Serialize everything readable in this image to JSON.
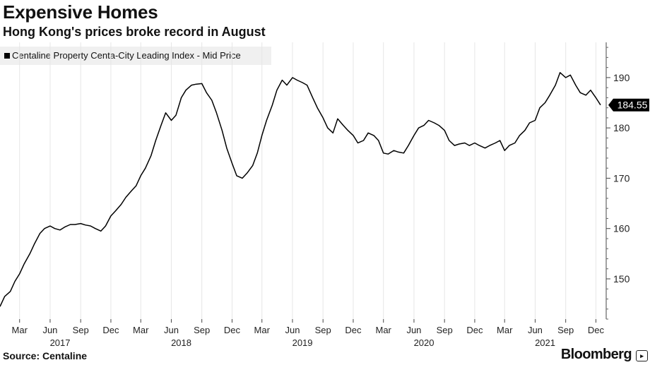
{
  "header": {
    "title": "Expensive Homes",
    "subtitle": "Hong Kong's prices broke record in August"
  },
  "legend": {
    "label": "Centaline Property Centa-City Leading Index - Mid Price"
  },
  "footer": {
    "source": "Source: Centaline",
    "brand": "Bloomberg"
  },
  "colors": {
    "line": "#000000",
    "grid": "#e6e6e6",
    "legend_bg": "#f0f0f0"
  },
  "chart_data": {
    "type": "line",
    "title": "Expensive Homes",
    "subtitle": "Hong Kong's prices broke record in August",
    "series": [
      {
        "name": "Centaline Property Centa-City Leading Index - Mid Price",
        "x": [
          "2017-01-01",
          "2017-01-15",
          "2017-02-01",
          "2017-02-15",
          "2017-03-01",
          "2017-03-15",
          "2017-04-01",
          "2017-04-15",
          "2017-05-01",
          "2017-05-15",
          "2017-06-01",
          "2017-06-15",
          "2017-07-01",
          "2017-07-15",
          "2017-08-01",
          "2017-08-15",
          "2017-09-01",
          "2017-09-15",
          "2017-10-01",
          "2017-10-15",
          "2017-11-01",
          "2017-11-15",
          "2017-12-01",
          "2017-12-15",
          "2018-01-01",
          "2018-01-15",
          "2018-02-01",
          "2018-02-15",
          "2018-03-01",
          "2018-03-15",
          "2018-04-01",
          "2018-04-15",
          "2018-05-01",
          "2018-05-15",
          "2018-06-01",
          "2018-06-15",
          "2018-07-01",
          "2018-07-15",
          "2018-08-01",
          "2018-08-15",
          "2018-09-01",
          "2018-09-15",
          "2018-10-01",
          "2018-10-15",
          "2018-11-01",
          "2018-11-15",
          "2018-12-01",
          "2018-12-15",
          "2019-01-01",
          "2019-01-15",
          "2019-02-01",
          "2019-02-15",
          "2019-03-01",
          "2019-03-15",
          "2019-04-01",
          "2019-04-15",
          "2019-05-01",
          "2019-05-15",
          "2019-06-01",
          "2019-06-15",
          "2019-07-01",
          "2019-07-15",
          "2019-08-01",
          "2019-08-15",
          "2019-09-01",
          "2019-09-15",
          "2019-10-01",
          "2019-10-15",
          "2019-11-01",
          "2019-11-15",
          "2019-12-01",
          "2019-12-15",
          "2020-01-01",
          "2020-01-15",
          "2020-02-01",
          "2020-02-15",
          "2020-03-01",
          "2020-03-15",
          "2020-04-01",
          "2020-04-15",
          "2020-05-01",
          "2020-05-15",
          "2020-06-01",
          "2020-06-15",
          "2020-07-01",
          "2020-07-15",
          "2020-08-01",
          "2020-08-15",
          "2020-09-01",
          "2020-09-15",
          "2020-10-01",
          "2020-10-15",
          "2020-11-01",
          "2020-11-15",
          "2020-12-01",
          "2020-12-15",
          "2021-01-01",
          "2021-01-15",
          "2021-02-01",
          "2021-02-15",
          "2021-03-01",
          "2021-03-15",
          "2021-04-01",
          "2021-04-15",
          "2021-05-01",
          "2021-05-15",
          "2021-06-01",
          "2021-06-15",
          "2021-07-01",
          "2021-07-15",
          "2021-08-01",
          "2021-08-15",
          "2021-09-01",
          "2021-09-15",
          "2021-10-01",
          "2021-10-15",
          "2021-11-01",
          "2021-11-15",
          "2021-12-01",
          "2021-12-15"
        ],
        "values": [
          144.5,
          146.5,
          147.5,
          149.5,
          151.0,
          153.0,
          155.0,
          157.0,
          159.0,
          160.0,
          160.5,
          160.0,
          159.7,
          160.3,
          160.8,
          160.8,
          161.0,
          160.7,
          160.5,
          160.0,
          159.5,
          160.5,
          162.5,
          163.5,
          164.8,
          166.2,
          167.5,
          168.5,
          170.5,
          172.0,
          174.5,
          177.5,
          180.5,
          183.0,
          181.5,
          182.5,
          186.0,
          187.5,
          188.5,
          188.7,
          188.8,
          187.0,
          185.5,
          183.0,
          179.5,
          176.0,
          173.0,
          170.5,
          170.0,
          171.0,
          172.5,
          175.0,
          178.5,
          181.5,
          184.5,
          187.5,
          189.5,
          188.5,
          190.0,
          189.5,
          189.0,
          188.5,
          186.0,
          184.0,
          182.0,
          180.0,
          179.0,
          181.8,
          180.5,
          179.5,
          178.5,
          177.0,
          177.5,
          179.0,
          178.5,
          177.5,
          175.0,
          174.8,
          175.5,
          175.2,
          175.0,
          176.5,
          178.5,
          180.0,
          180.5,
          181.5,
          181.0,
          180.5,
          179.5,
          177.5,
          176.5,
          176.8,
          177.0,
          176.5,
          177.0,
          176.5,
          176.0,
          176.5,
          177.0,
          177.5,
          175.5,
          176.5,
          177.0,
          178.5,
          179.5,
          181.0,
          181.5,
          184.0,
          185.0,
          186.5,
          188.5,
          191.0,
          190.0,
          190.5,
          188.5,
          187.0,
          186.5,
          187.5,
          186.0,
          184.55
        ]
      }
    ],
    "ylim": [
      142,
      197
    ],
    "y_ticks": [
      150,
      160,
      170,
      180,
      190
    ],
    "x_tick_labels": [
      "Mar",
      "Jun",
      "Sep",
      "Dec",
      "Mar",
      "Jun",
      "Sep",
      "Dec",
      "Mar",
      "Jun",
      "Sep",
      "Dec",
      "Mar",
      "Jun",
      "Sep",
      "Dec",
      "Mar",
      "Jun",
      "Sep",
      "Dec"
    ],
    "x_tick_dates": [
      "2017-03",
      "2017-06",
      "2017-09",
      "2017-12",
      "2018-03",
      "2018-06",
      "2018-09",
      "2018-12",
      "2019-03",
      "2019-06",
      "2019-09",
      "2019-12",
      "2020-03",
      "2020-06",
      "2020-09",
      "2020-12",
      "2021-03",
      "2021-06",
      "2021-09",
      "2021-12"
    ],
    "year_labels": [
      {
        "label": "2017",
        "date": "2017-07"
      },
      {
        "label": "2018",
        "date": "2018-07"
      },
      {
        "label": "2019",
        "date": "2019-07"
      },
      {
        "label": "2020",
        "date": "2020-07"
      },
      {
        "label": "2021",
        "date": "2021-07"
      }
    ],
    "last_value_label": "184.55",
    "x_range": [
      "2017-01",
      "2022-01"
    ],
    "grid": "vertical",
    "y_axis_position": "right",
    "legend_position": "top-left"
  }
}
